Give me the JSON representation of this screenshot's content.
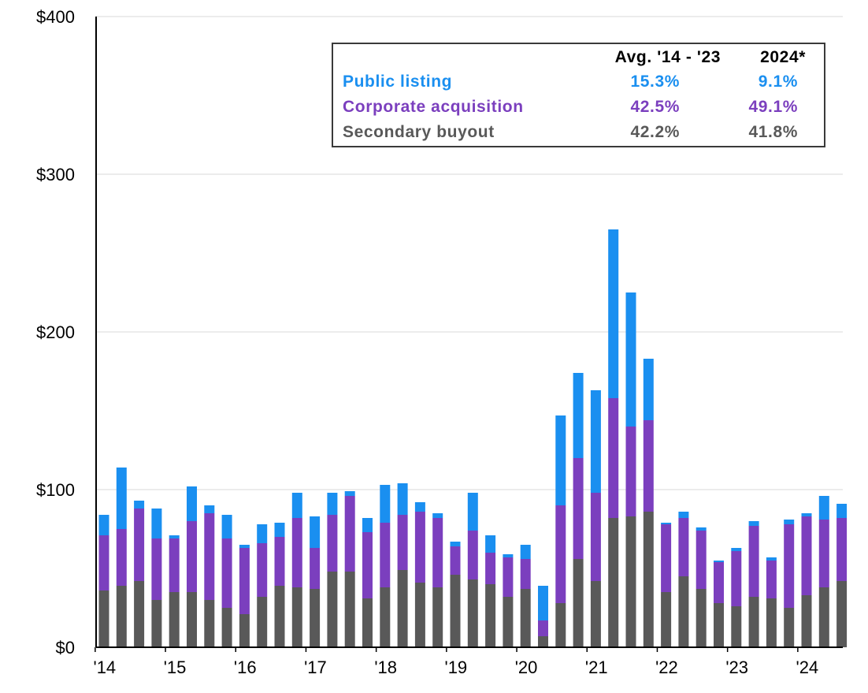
{
  "chart_data": {
    "type": "bar",
    "stacked": true,
    "ylim": [
      0,
      400
    ],
    "yticks": [
      "$0",
      "$100",
      "$200",
      "$300",
      "$400"
    ],
    "ytick_values": [
      0,
      100,
      200,
      300,
      400
    ],
    "xticks": [
      "'14",
      "'15",
      "'16",
      "'17",
      "'18",
      "'19",
      "'20",
      "'21",
      "'22",
      "'23",
      "'24"
    ],
    "grid": true,
    "series": [
      {
        "name": "Secondary buyout",
        "color": "#595959",
        "values": [
          36,
          39,
          42,
          30,
          35,
          35,
          30,
          25,
          21,
          32,
          39,
          38,
          37,
          48,
          48,
          31,
          38,
          49,
          41,
          38,
          46,
          43,
          40,
          32,
          37,
          7,
          28,
          56,
          42,
          82,
          83,
          86,
          35,
          45,
          37,
          28,
          26,
          32,
          31,
          25,
          33,
          38,
          42
        ]
      },
      {
        "name": "Corporate acquisition",
        "color": "#7b3fbe",
        "values": [
          35,
          36,
          46,
          39,
          34,
          45,
          55,
          44,
          42,
          34,
          31,
          44,
          26,
          36,
          48,
          42,
          41,
          35,
          45,
          44,
          18,
          31,
          20,
          25,
          19,
          10,
          62,
          64,
          56,
          76,
          57,
          58,
          43,
          37,
          37,
          26,
          35,
          45,
          24,
          53,
          50,
          43,
          40
        ]
      },
      {
        "name": "Public listing",
        "color": "#1a8ff0",
        "values": [
          13,
          39,
          5,
          19,
          2,
          22,
          5,
          15,
          2,
          12,
          9,
          16,
          20,
          14,
          3,
          9,
          24,
          20,
          6,
          3,
          3,
          24,
          11,
          2,
          9,
          22,
          57,
          54,
          65,
          107,
          85,
          39,
          1,
          4,
          2,
          1,
          2,
          3,
          2,
          3,
          2,
          15,
          9
        ]
      }
    ]
  },
  "legend": {
    "header_avg": "Avg. '14 - '23",
    "header_2024": "2024*",
    "rows": [
      {
        "label": "Public listing",
        "avg": "15.3%",
        "y2024": "9.1%",
        "color": "#1a8ff0"
      },
      {
        "label": "Corporate acquisition",
        "avg": "42.5%",
        "y2024": "49.1%",
        "color": "#7b3fbe"
      },
      {
        "label": "Secondary buyout",
        "avg": "42.2%",
        "y2024": "41.8%",
        "color": "#595959"
      }
    ]
  }
}
